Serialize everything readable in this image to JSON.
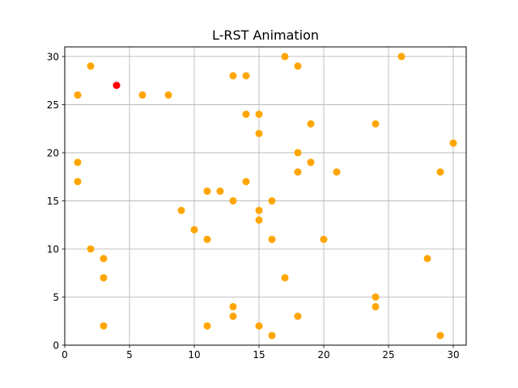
{
  "chart_data": {
    "type": "scatter",
    "title": "L-RST Animation",
    "xlabel": "",
    "ylabel": "",
    "xlim": [
      0,
      31
    ],
    "ylim": [
      0,
      31
    ],
    "xticks": [
      0,
      5,
      10,
      15,
      20,
      25,
      30
    ],
    "yticks": [
      0,
      5,
      10,
      15,
      20,
      25,
      30
    ],
    "grid": true,
    "legend": "none",
    "series": [
      {
        "color": "#ffa500",
        "points": [
          [
            2,
            29
          ],
          [
            13,
            28
          ],
          [
            14,
            28
          ],
          [
            17,
            30
          ],
          [
            18,
            29
          ],
          [
            26,
            30
          ],
          [
            1,
            26
          ],
          [
            6,
            26
          ],
          [
            8,
            26
          ],
          [
            14,
            24
          ],
          [
            15,
            24
          ],
          [
            15,
            22
          ],
          [
            19,
            23
          ],
          [
            24,
            23
          ],
          [
            1,
            19
          ],
          [
            18,
            20
          ],
          [
            19,
            19
          ],
          [
            30,
            21
          ],
          [
            1,
            17
          ],
          [
            14,
            17
          ],
          [
            18,
            18
          ],
          [
            21,
            18
          ],
          [
            29,
            18
          ],
          [
            11,
            16
          ],
          [
            12,
            16
          ],
          [
            13,
            15
          ],
          [
            16,
            15
          ],
          [
            9,
            14
          ],
          [
            15,
            14
          ],
          [
            15,
            13
          ],
          [
            10,
            12
          ],
          [
            11,
            11
          ],
          [
            16,
            11
          ],
          [
            20,
            11
          ],
          [
            2,
            10
          ],
          [
            3,
            9
          ],
          [
            28,
            9
          ],
          [
            3,
            7
          ],
          [
            17,
            7
          ],
          [
            24,
            5
          ],
          [
            13,
            4
          ],
          [
            24,
            4
          ],
          [
            13,
            3
          ],
          [
            18,
            3
          ],
          [
            3,
            2
          ],
          [
            11,
            2
          ],
          [
            15,
            2
          ],
          [
            16,
            1
          ],
          [
            29,
            1
          ]
        ]
      },
      {
        "color": "#ff0000",
        "points": [
          [
            4,
            27
          ]
        ]
      }
    ]
  }
}
